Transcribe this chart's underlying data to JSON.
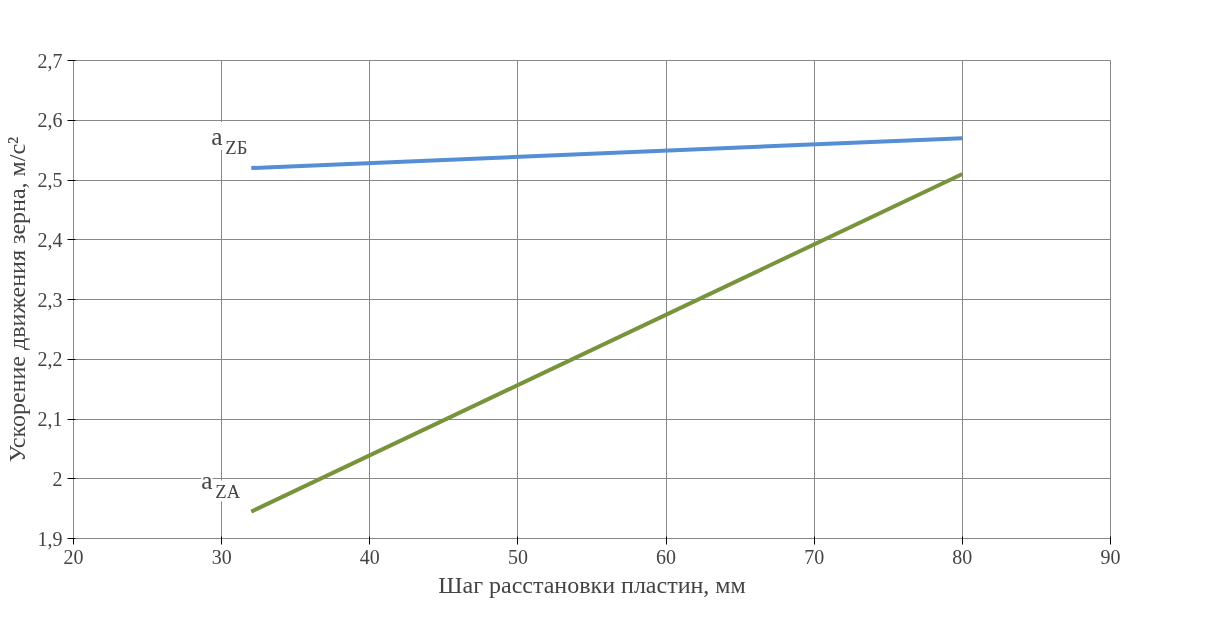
{
  "chart_data": {
    "type": "line",
    "xlabel": "Шаг расстановки пластин, мм",
    "ylabel": "Ускорение движения зерна, м/с²",
    "x": [
      32,
      80
    ],
    "series": [
      {
        "name": "a$_{ZБ}$",
        "color": "#558ed5",
        "values": [
          2.52,
          2.57
        ]
      },
      {
        "name": "a$_{ZA}$",
        "color": "#77933c",
        "values": [
          1.945,
          2.51
        ]
      }
    ],
    "xlim": [
      20,
      90
    ],
    "xticks": [
      20,
      30,
      40,
      50,
      60,
      70,
      80,
      90
    ],
    "ylim": [
      1.9,
      2.7
    ],
    "yticks": [
      {
        "value": 1.9,
        "label": "1,9"
      },
      2,
      {
        "value": 2.1,
        "label": "2,1"
      },
      {
        "value": 2.2,
        "label": "2,2"
      },
      {
        "value": 2.3,
        "label": "2,3"
      },
      {
        "value": 2.4,
        "label": "2,4"
      },
      {
        "value": 2.5,
        "label": "2,5"
      },
      {
        "value": 2.6,
        "label": "2,6"
      },
      {
        "value": 2.7,
        "label": "2,7"
      }
    ],
    "grid": true,
    "marker": "none",
    "line_style": "solid"
  }
}
